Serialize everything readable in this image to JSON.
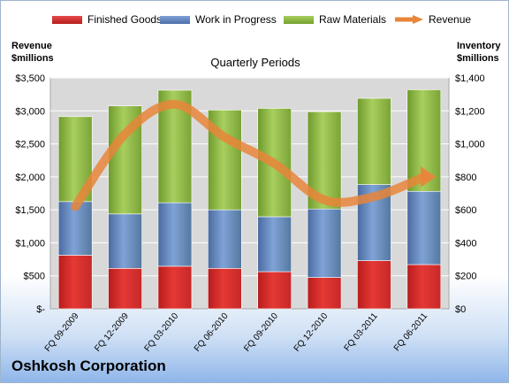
{
  "chart_data": {
    "type": "bar",
    "stacked": true,
    "categories": [
      "FQ 09-2009",
      "FQ 12-2009",
      "FQ 03-2010",
      "FQ 06-2010",
      "FQ 09-2010",
      "FQ 12-2010",
      "FQ 03-2011",
      "FQ 06-2011"
    ],
    "series": [
      {
        "name": "Finished Goods",
        "axis": "right",
        "color": "#c62828",
        "values": [
          325,
          245,
          258,
          245,
          225,
          190,
          292,
          268
        ]
      },
      {
        "name": "Work in Progress",
        "axis": "right",
        "color": "#5b7fbd",
        "values": [
          325,
          330,
          385,
          355,
          333,
          415,
          461,
          444
        ]
      },
      {
        "name": "Raw Materials",
        "axis": "right",
        "color": "#8fbc3f",
        "values": [
          515,
          655,
          682,
          605,
          657,
          590,
          523,
          616
        ]
      }
    ],
    "line": {
      "name": "Revenue",
      "axis": "left",
      "color": "#e8853a",
      "values": [
        1550,
        2650,
        3100,
        2600,
        2200,
        1650,
        1700,
        2000
      ]
    },
    "xlabel": "Quarterly Periods",
    "ylabel_left": "Revenue\n$millions",
    "ylabel_right": "Inventory\n$millions",
    "ylim_left": [
      0,
      3500
    ],
    "ylim_right": [
      0,
      1400
    ],
    "yticks_left": [
      "$-",
      "$500",
      "$1,000",
      "$1,500",
      "$2,000",
      "$2,500",
      "$3,000",
      "$3,500"
    ],
    "yticks_right": [
      "$0",
      "$200",
      "$400",
      "$600",
      "$800",
      "$1,000",
      "$1,200",
      "$1,400"
    ],
    "grid": true,
    "legend_position": "top"
  },
  "legend": {
    "finished_goods": "Finished Goods",
    "wip": "Work in Progress",
    "raw_materials": "Raw Materials",
    "revenue": "Revenue"
  },
  "axis_titles": {
    "left_line1": "Revenue",
    "left_line2": "$millions",
    "right_line1": "Inventory",
    "right_line2": "$millions"
  },
  "company": "Oshkosh Corporation"
}
